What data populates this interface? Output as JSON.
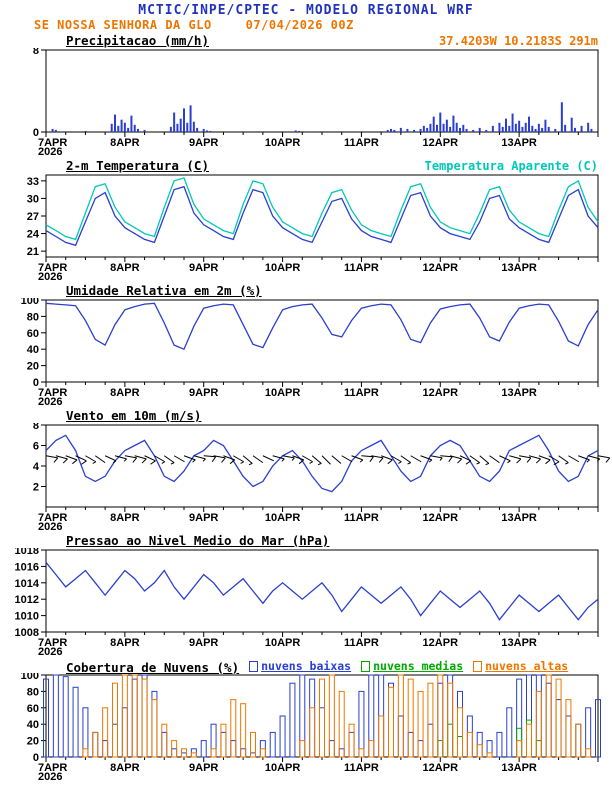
{
  "header": {
    "title": "MCTIC/INPE/CPTEC - MODELO REGIONAL WRF",
    "station": "SE NOSSA SENHORA DA GLO",
    "run": "07/04/2026 00Z",
    "location": "37.4203W 10.2183S 291m"
  },
  "colors": {
    "header_blue": "#2233bb",
    "orange": "#ee7600",
    "blue": "#2a3fd0",
    "cyan": "#00c8b8",
    "green": "#00a800",
    "black": "#000000"
  },
  "chart_data": {
    "shared_x": {
      "tick_labels": [
        "7APR",
        "8APR",
        "9APR",
        "10APR",
        "11APR",
        "12APR",
        "13APR"
      ],
      "year_label": "2026",
      "range_hours": [
        0,
        168
      ],
      "label_every_hours": 24,
      "minor_tick_hours": 6
    },
    "panels": [
      {
        "id": "precipitation",
        "type": "bar",
        "title": "Precipitacao (mm/h)",
        "right_label": {
          "name": "station-coordinates",
          "text": "37.4203W 10.2183S 291m",
          "color": "orange"
        },
        "ylim": [
          0,
          8
        ],
        "yticks": [
          0,
          8
        ],
        "x_step_hours": 1,
        "series": [
          {
            "name": "Precipitacao",
            "color": "blue",
            "values": [
              0,
              0,
              0.3,
              0.2,
              0,
              0,
              0,
              0,
              0,
              0,
              0,
              0,
              0.1,
              0,
              0,
              0,
              0,
              0,
              0,
              0,
              0.8,
              1.7,
              0.6,
              1.2,
              0.9,
              0.4,
              1.6,
              0.7,
              0.3,
              0,
              0.2,
              0,
              0,
              0,
              0,
              0,
              0,
              0,
              0.5,
              1.9,
              0.8,
              1.3,
              2.3,
              0.9,
              2.6,
              1,
              0.4,
              0,
              0.3,
              0.15,
              0.1,
              0,
              0,
              0,
              0,
              0,
              0,
              0,
              0,
              0,
              0,
              0,
              0,
              0,
              0,
              0,
              0,
              0,
              0,
              0,
              0,
              0,
              0,
              0,
              0,
              0,
              0.15,
              0.1,
              0,
              0,
              0,
              0,
              0,
              0,
              0,
              0,
              0,
              0,
              0,
              0,
              0,
              0,
              0,
              0,
              0,
              0,
              0,
              0,
              0,
              0,
              0,
              0,
              0,
              0,
              0.2,
              0.3,
              0.2,
              0,
              0.4,
              0,
              0.3,
              0,
              0.2,
              0,
              0.3,
              0.6,
              0.4,
              0.8,
              1.5,
              0.7,
              1.9,
              0.8,
              1.2,
              0.5,
              1.6,
              0.9,
              0.4,
              0.7,
              0.3,
              0,
              0.2,
              0,
              0.4,
              0,
              0.2,
              0,
              0.6,
              0,
              0.9,
              0.5,
              1.3,
              0.6,
              1.8,
              0.8,
              1.1,
              0.5,
              0.9,
              1.5,
              0.6,
              0.3,
              0.8,
              0.4,
              1.2,
              0.5,
              0,
              0.3,
              0,
              2.9,
              0.7,
              0,
              1.4,
              0.4,
              0,
              0.6,
              0,
              0.9,
              0.3,
              0
            ]
          }
        ]
      },
      {
        "id": "temperature",
        "type": "line",
        "title": "2-m Temperatura (C)",
        "right_label": {
          "name": "apparent-temperature-label",
          "text": "Temperatura Aparente (C)",
          "color": "cyan"
        },
        "ylim": [
          20,
          34
        ],
        "yticks": [
          21,
          24,
          27,
          30,
          33
        ],
        "x_step_hours": 3,
        "series": [
          {
            "name": "2-m Temperatura",
            "color": "blue",
            "values": [
              24.5,
              23.5,
              22.5,
              22,
              26,
              30,
              31,
              27,
              25,
              24,
              23,
              22.5,
              27,
              31.5,
              32,
              27.5,
              25.5,
              24.5,
              23.5,
              23,
              27.5,
              31.5,
              31,
              27,
              25,
              24,
              23,
              22.5,
              26,
              29.5,
              30,
              26.5,
              24.5,
              23.5,
              23,
              22.5,
              26.5,
              30.5,
              31,
              27,
              25,
              24,
              23.5,
              23,
              26,
              30,
              30.5,
              26.5,
              25,
              24,
              23,
              22.5,
              26.5,
              30.5,
              31.5,
              27,
              25
            ]
          },
          {
            "name": "Temperatura Aparente",
            "color": "cyan",
            "values": [
              25.5,
              24.5,
              23.5,
              23,
              27.5,
              32,
              32.5,
              28.5,
              26,
              25,
              24,
              23.5,
              28.5,
              33,
              33.5,
              29,
              26.5,
              25.5,
              24.5,
              24,
              29,
              33,
              32.5,
              28.5,
              26,
              25,
              24,
              23.5,
              27.5,
              31,
              31.5,
              28,
              25.5,
              24.5,
              24,
              23.5,
              28,
              32,
              32.5,
              28.5,
              26,
              25,
              24.5,
              24,
              27.5,
              31.5,
              32,
              28,
              26,
              25,
              24,
              23.5,
              28,
              32,
              33,
              28.5,
              26
            ]
          }
        ]
      },
      {
        "id": "humidity",
        "type": "line",
        "title": "Umidade Relativa em 2m (%)",
        "ylim": [
          0,
          100
        ],
        "yticks": [
          0,
          20,
          40,
          60,
          80,
          100
        ],
        "x_step_hours": 3,
        "series": [
          {
            "name": "Umidade Relativa",
            "color": "blue",
            "values": [
              96,
              95,
              94,
              93,
              75,
              52,
              45,
              70,
              88,
              92,
              95,
              96,
              72,
              45,
              40,
              68,
              90,
              93,
              95,
              94,
              70,
              46,
              42,
              66,
              88,
              92,
              94,
              95,
              78,
              58,
              55,
              75,
              90,
              93,
              95,
              94,
              76,
              52,
              48,
              72,
              89,
              92,
              94,
              95,
              78,
              55,
              50,
              73,
              90,
              93,
              95,
              94,
              74,
              50,
              44,
              70,
              88
            ]
          }
        ]
      },
      {
        "id": "wind",
        "type": "line",
        "title": "Vento em 10m (m/s)",
        "ylim": [
          0,
          8
        ],
        "yticks": [
          2,
          4,
          6,
          8
        ],
        "x_step_hours": 3,
        "series": [
          {
            "name": "Vento 10m",
            "color": "blue",
            "values": [
              5.5,
              6.5,
              7,
              5.5,
              3,
              2.5,
              3,
              4.5,
              5.5,
              6,
              6.5,
              5,
              3,
              2.5,
              3.5,
              5,
              5.5,
              6.5,
              6,
              4.5,
              3,
              2,
              2.5,
              4,
              5,
              5.5,
              4.5,
              3,
              1.8,
              1.5,
              2.5,
              4.5,
              5.5,
              6,
              6.5,
              5,
              3.5,
              2.5,
              3,
              5,
              6,
              6.5,
              6,
              4.5,
              3,
              2.5,
              3.5,
              5.5,
              6,
              6.5,
              7,
              5.5,
              3.5,
              2.5,
              3,
              5,
              5.5
            ]
          }
        ],
        "barbs": {
          "y": 5,
          "color": "black",
          "dirs": [
            100,
            105,
            110,
            115,
            120,
            125,
            115,
            105,
            100,
            105,
            115,
            120,
            125,
            120,
            110,
            105,
            95,
            100,
            110,
            120,
            130,
            125,
            115,
            105,
            100,
            110,
            120,
            130,
            135,
            130,
            120,
            110,
            95,
            100,
            110,
            120,
            125,
            120,
            110,
            100,
            95,
            105,
            115,
            125,
            130,
            125,
            115,
            105,
            100,
            105,
            110,
            120,
            125,
            120,
            110,
            105,
            100
          ]
        }
      },
      {
        "id": "pressure",
        "type": "line",
        "title": "Pressao ao Nivel Medio do Mar (hPa)",
        "ylim": [
          1008,
          1018
        ],
        "yticks": [
          1008,
          1010,
          1012,
          1014,
          1016,
          1018
        ],
        "x_step_hours": 3,
        "series": [
          {
            "name": "Pressao",
            "color": "blue",
            "values": [
              1016.5,
              1015,
              1013.5,
              1014.5,
              1015.5,
              1014,
              1012.5,
              1014,
              1015.5,
              1014.5,
              1013,
              1014,
              1015.5,
              1013.5,
              1012,
              1013.5,
              1015,
              1014,
              1012.5,
              1013.5,
              1014.5,
              1013,
              1011.5,
              1013,
              1014,
              1013,
              1012,
              1013,
              1014,
              1012.5,
              1010.5,
              1012,
              1013.5,
              1012.5,
              1011.5,
              1012.5,
              1013.5,
              1012,
              1010,
              1011.5,
              1013,
              1012,
              1011,
              1012,
              1013,
              1011.5,
              1009.5,
              1011,
              1012.5,
              1011.5,
              1010.5,
              1011.5,
              1012.5,
              1011,
              1009.5,
              1011,
              1012
            ]
          }
        ]
      },
      {
        "id": "clouds",
        "type": "hollow-bar",
        "title": "Cobertura de Nuvens (%)",
        "legend": true,
        "ylim": [
          0,
          100
        ],
        "yticks": [
          0,
          20,
          40,
          60,
          80,
          100
        ],
        "x_step_hours": 3,
        "series": [
          {
            "name": "nuvens baixas",
            "color": "blue",
            "values": [
              95,
              100,
              98,
              85,
              60,
              30,
              20,
              40,
              60,
              95,
              100,
              80,
              30,
              10,
              5,
              10,
              20,
              40,
              30,
              20,
              10,
              5,
              20,
              30,
              50,
              90,
              100,
              95,
              60,
              20,
              10,
              30,
              80,
              100,
              100,
              90,
              50,
              30,
              20,
              40,
              90,
              100,
              80,
              50,
              30,
              20,
              30,
              60,
              95,
              100,
              100,
              90,
              70,
              50,
              40,
              60,
              70
            ]
          },
          {
            "name": "nuvens medias",
            "color": "green",
            "values": [
              0,
              0,
              0,
              0,
              0,
              0,
              0,
              0,
              0,
              0,
              0,
              0,
              0,
              0,
              0,
              0,
              0,
              0,
              0,
              0,
              0,
              0,
              0,
              0,
              0,
              0,
              0,
              0,
              0,
              0,
              0,
              0,
              0,
              0,
              0,
              0,
              0,
              0,
              0,
              0,
              20,
              40,
              25,
              0,
              0,
              0,
              0,
              0,
              35,
              45,
              20,
              0,
              0,
              0,
              0,
              0,
              0
            ]
          },
          {
            "name": "nuvens altas",
            "color": "orange",
            "values": [
              0,
              0,
              0,
              0,
              10,
              30,
              60,
              90,
              100,
              100,
              95,
              70,
              40,
              20,
              10,
              5,
              0,
              10,
              40,
              70,
              65,
              30,
              10,
              0,
              0,
              0,
              20,
              60,
              95,
              100,
              80,
              40,
              10,
              20,
              50,
              85,
              100,
              95,
              80,
              90,
              100,
              90,
              60,
              30,
              15,
              5,
              0,
              0,
              20,
              40,
              80,
              100,
              95,
              70,
              40,
              10,
              0
            ]
          }
        ]
      }
    ]
  }
}
